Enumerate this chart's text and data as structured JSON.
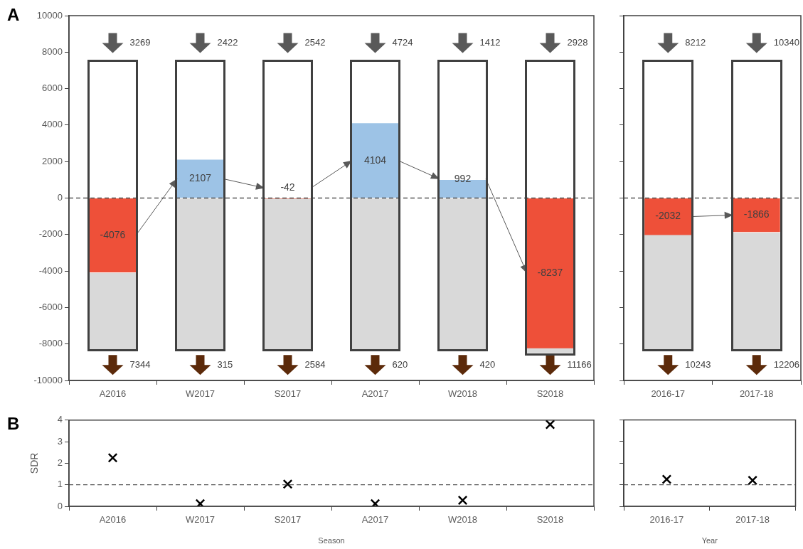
{
  "chart_data": [
    {
      "type": "bar",
      "title": "A",
      "categories": [
        "A2016",
        "W2017",
        "S2017",
        "A2017",
        "W2018",
        "S2018"
      ],
      "ylim": [
        -10000,
        10000
      ],
      "yticks": [
        -10000,
        -8000,
        -6000,
        -4000,
        -2000,
        0,
        2000,
        4000,
        6000,
        8000,
        10000
      ],
      "grid": false,
      "series": [
        {
          "color": "#d9d9d9",
          "base": [
            -8300,
            -8300,
            -8300,
            -8300,
            -8300,
            -8500
          ],
          "values": [
            4200,
            8300,
            8300,
            8300,
            8300,
            300
          ]
        },
        {
          "colors": [
            "#ee5039",
            "#9dc3e6",
            "#ee5039",
            "#9dc3e6",
            "#9dc3e6",
            "#ee5039"
          ],
          "values": [
            -4076,
            2107,
            -42,
            4104,
            992,
            -8237
          ],
          "value_labels": [
            "-4076",
            "2107",
            "-42",
            "4104",
            "992",
            "-8237"
          ]
        }
      ],
      "ref_lines": [
        {
          "axis": "y",
          "value": 0,
          "line_style": "dashed",
          "color": "#595959"
        }
      ],
      "annotations": [
        {
          "text": "3269",
          "x": "A2016",
          "y": 8500
        },
        {
          "text": "2422",
          "x": "W2017",
          "y": 8500
        },
        {
          "text": "2542",
          "x": "S2017",
          "y": 8500
        },
        {
          "text": "4724",
          "x": "A2017",
          "y": 8500
        },
        {
          "text": "1412",
          "x": "W2018",
          "y": 8500
        },
        {
          "text": "2928",
          "x": "S2018",
          "y": 8500
        },
        {
          "text": "7344",
          "x": "A2016",
          "y": -9150
        },
        {
          "text": "315",
          "x": "W2017",
          "y": -9150
        },
        {
          "text": "2584",
          "x": "S2017",
          "y": -9150
        },
        {
          "text": "620",
          "x": "A2017",
          "y": -9150
        },
        {
          "text": "420",
          "x": "W2018",
          "y": -9150
        },
        {
          "text": "11166",
          "x": "S2018",
          "y": -9150
        }
      ]
    },
    {
      "type": "bar",
      "categories": [
        "2016-17",
        "2017-18"
      ],
      "ylim": [
        -10000,
        10000
      ],
      "yticks": [
        -10000,
        -8000,
        -6000,
        -4000,
        -2000,
        0,
        2000,
        4000,
        6000,
        8000,
        10000
      ],
      "grid": false,
      "tick_labels": "x",
      "series": [
        {
          "color": "#d9d9d9",
          "base": [
            -8300,
            -8300
          ],
          "values": [
            6300,
            6400
          ]
        },
        {
          "colors": [
            "#ee5039",
            "#ee5039"
          ],
          "values": [
            -2032,
            -1866
          ],
          "value_labels": [
            "-2032",
            "-1866"
          ]
        }
      ],
      "ref_lines": [
        {
          "axis": "y",
          "value": 0,
          "line_style": "dashed",
          "color": "#595959"
        }
      ],
      "annotations": [
        {
          "text": "8212",
          "x": "2016-17",
          "y": 8500
        },
        {
          "text": "10340",
          "x": "2017-18",
          "y": 8500
        },
        {
          "text": "10243",
          "x": "2016-17",
          "y": -9150
        },
        {
          "text": "12206",
          "x": "2017-18",
          "y": -9150
        }
      ]
    },
    {
      "type": "scatter",
      "title": "B",
      "categories": [
        "A2016",
        "W2017",
        "S2017",
        "A2017",
        "W2018",
        "S2018"
      ],
      "ylim": [
        0,
        4
      ],
      "yticks": [
        0,
        1,
        2,
        3,
        4
      ],
      "ylabel": "SDR",
      "xlabel": "Season",
      "marker": "cross",
      "grid": false,
      "series": [
        {
          "color": "#000000",
          "values": [
            2.25,
            0.12,
            1.03,
            0.12,
            0.28,
            3.8
          ]
        }
      ],
      "ref_lines": [
        {
          "axis": "y",
          "value": 1,
          "line_style": "dashed",
          "color": "#595959"
        }
      ]
    },
    {
      "type": "scatter",
      "categories": [
        "2016-17",
        "2017-18"
      ],
      "ylim": [
        0,
        4
      ],
      "yticks": [
        0,
        1,
        2,
        3,
        4
      ],
      "xlabel": "Year",
      "marker": "cross",
      "grid": false,
      "tick_labels": "x",
      "series": [
        {
          "color": "#000000",
          "values": [
            1.25,
            1.2
          ]
        }
      ],
      "ref_lines": [
        {
          "axis": "y",
          "value": 1,
          "line_style": "dashed",
          "color": "#595959"
        }
      ]
    }
  ]
}
